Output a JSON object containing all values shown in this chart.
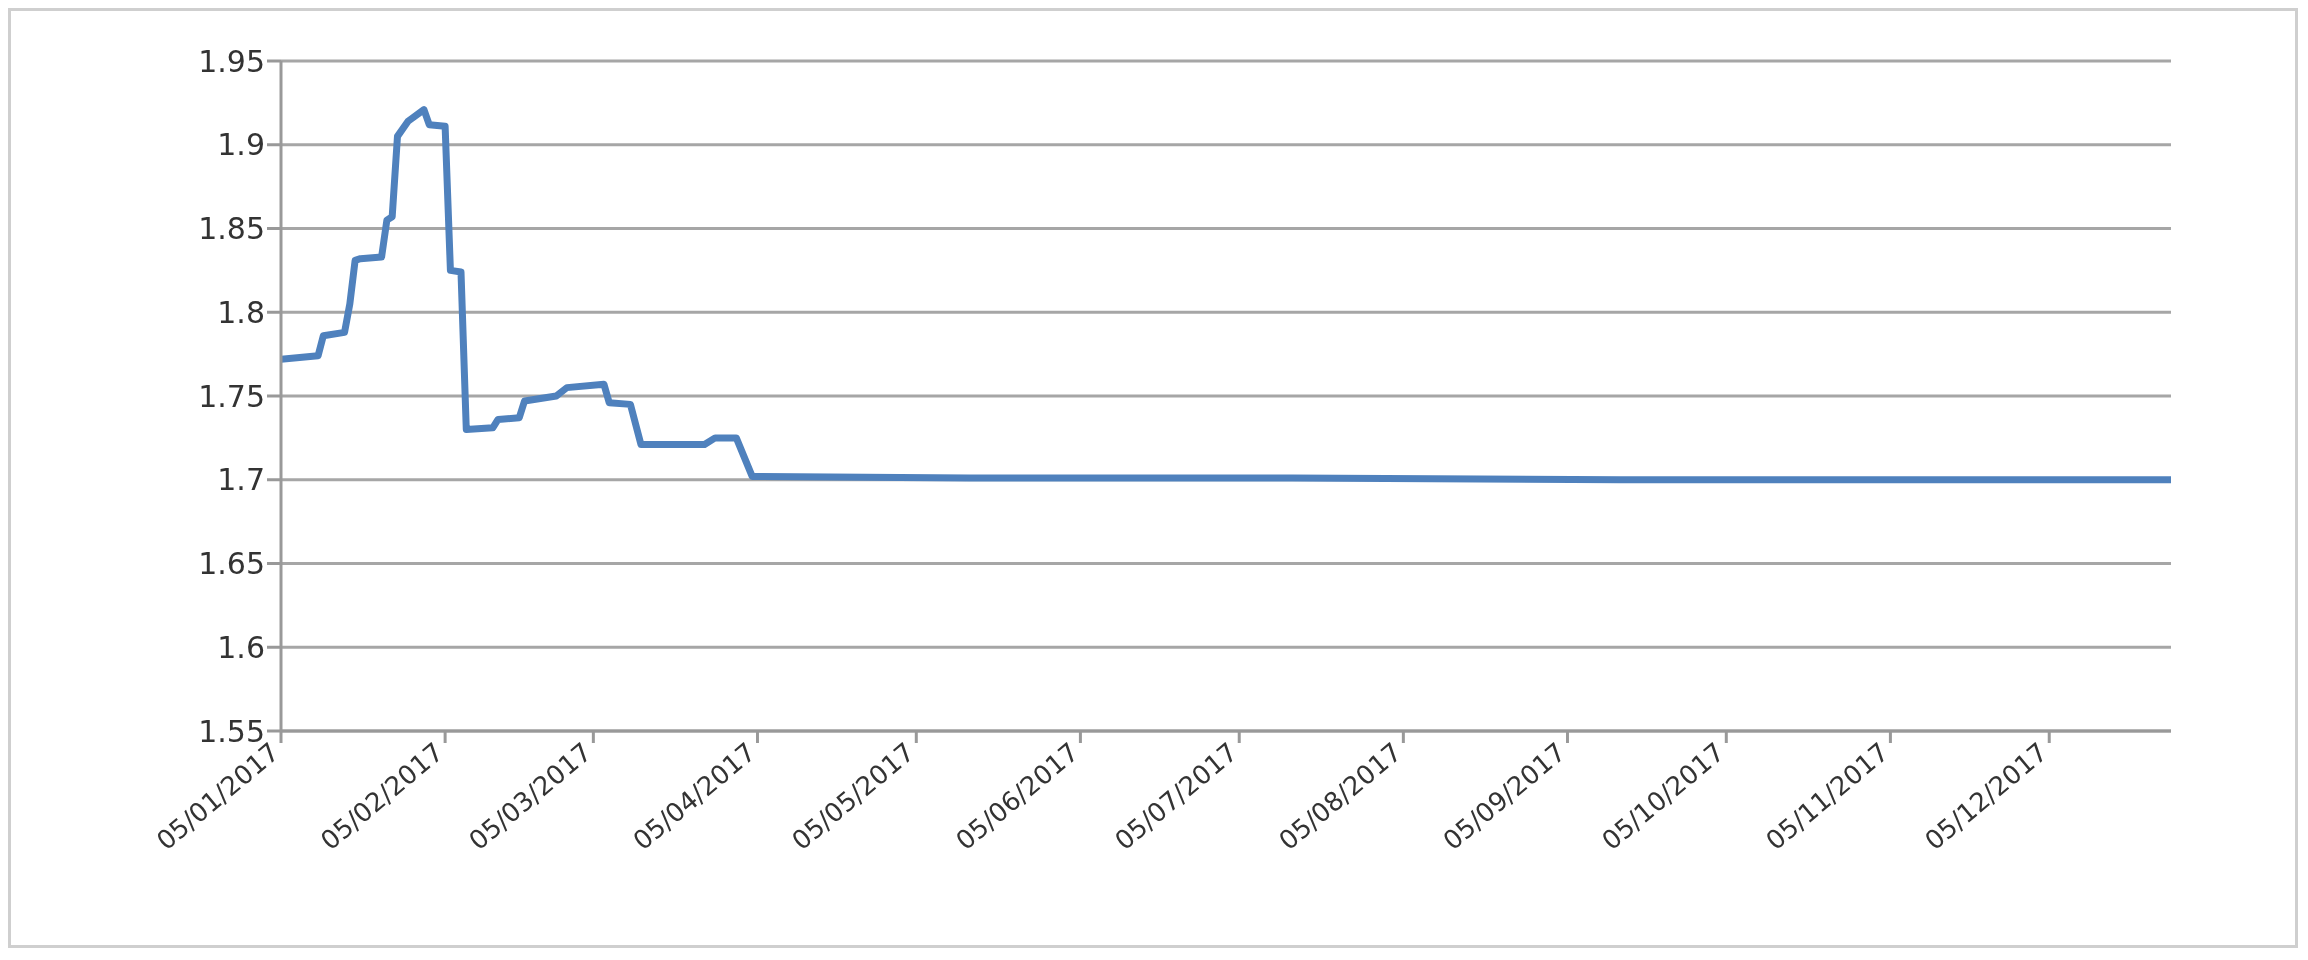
{
  "chart_data": {
    "type": "line",
    "x": [
      "2017-01-05",
      "2017-01-12",
      "2017-01-13",
      "2017-01-17",
      "2017-01-18",
      "2017-01-19",
      "2017-01-20",
      "2017-01-24",
      "2017-01-25",
      "2017-01-26",
      "2017-01-27",
      "2017-01-29",
      "2017-02-01",
      "2017-02-02",
      "2017-02-05",
      "2017-02-06",
      "2017-02-08",
      "2017-02-09",
      "2017-02-14",
      "2017-02-15",
      "2017-02-19",
      "2017-02-20",
      "2017-02-26",
      "2017-02-28",
      "2017-03-07",
      "2017-03-08",
      "2017-03-12",
      "2017-03-14",
      "2017-03-26",
      "2017-03-28",
      "2017-04-01",
      "2017-04-04",
      "2017-05-15",
      "2017-07-15",
      "2017-09-15",
      "2017-12-28"
    ],
    "series": [
      {
        "color": "#4f81bd",
        "values": [
          1.772,
          1.774,
          1.786,
          1.788,
          1.805,
          1.831,
          1.832,
          1.833,
          1.855,
          1.857,
          1.905,
          1.914,
          1.921,
          1.912,
          1.911,
          1.825,
          1.824,
          1.73,
          1.731,
          1.736,
          1.737,
          1.747,
          1.75,
          1.755,
          1.757,
          1.746,
          1.745,
          1.721,
          1.721,
          1.725,
          1.725,
          1.702,
          1.701,
          1.701,
          1.7,
          1.7
        ]
      }
    ],
    "xlim": [
      "2017-01-05",
      "2017-12-28"
    ],
    "xticks": [
      {
        "value": "2017-01-05",
        "label": "05/01/2017"
      },
      {
        "value": "2017-02-05",
        "label": "05/02/2017"
      },
      {
        "value": "2017-03-05",
        "label": "05/03/2017"
      },
      {
        "value": "2017-04-05",
        "label": "05/04/2017"
      },
      {
        "value": "2017-05-05",
        "label": "05/05/2017"
      },
      {
        "value": "2017-06-05",
        "label": "05/06/2017"
      },
      {
        "value": "2017-07-05",
        "label": "05/07/2017"
      },
      {
        "value": "2017-08-05",
        "label": "05/08/2017"
      },
      {
        "value": "2017-09-05",
        "label": "05/09/2017"
      },
      {
        "value": "2017-10-05",
        "label": "05/10/2017"
      },
      {
        "value": "2017-11-05",
        "label": "05/11/2017"
      },
      {
        "value": "2017-12-05",
        "label": "05/12/2017"
      }
    ],
    "ylim": [
      1.55,
      1.95
    ],
    "yticks": [
      1.55,
      1.6,
      1.65,
      1.7,
      1.75,
      1.8,
      1.85,
      1.9,
      1.95
    ],
    "grid": "y",
    "legend": false,
    "marker": "none",
    "line_style": "solid"
  }
}
